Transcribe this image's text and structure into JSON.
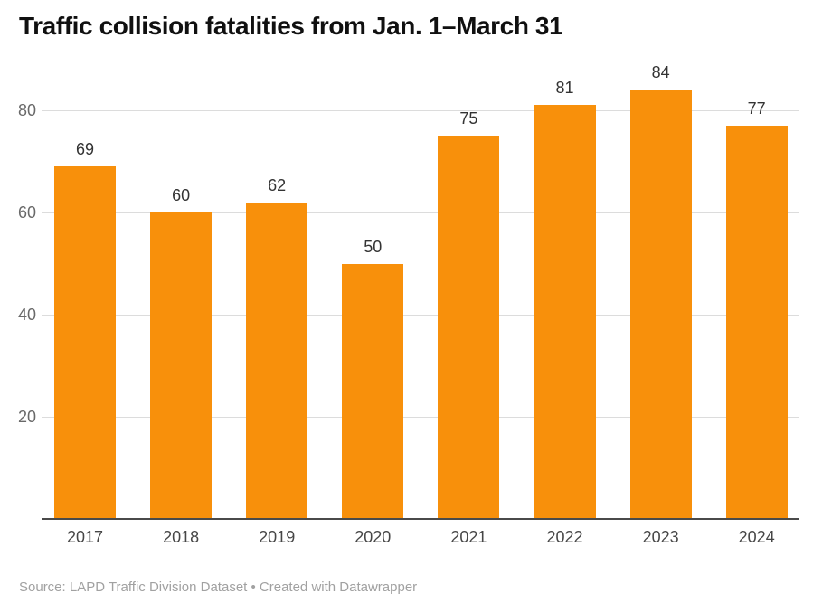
{
  "title": "Traffic collision fatalities from Jan. 1–March 31",
  "footer": {
    "source_text": "Source: LAPD Traffic Division Dataset • Created with Datawrapper"
  },
  "colors": {
    "bar": "#F8900B",
    "grid": "#DCDCDC",
    "axis_line": "#4A4A4A",
    "value_label": "#333333",
    "tick_label": "#696969",
    "x_label": "#464646",
    "title": "#101010",
    "source": "#A1A1A1"
  },
  "chart_data": {
    "type": "bar",
    "categories": [
      "2017",
      "2018",
      "2019",
      "2020",
      "2021",
      "2022",
      "2023",
      "2024"
    ],
    "values": [
      69,
      60,
      62,
      50,
      75,
      81,
      84,
      77
    ],
    "title": "Traffic collision fatalities from Jan. 1–March 31",
    "xlabel": "",
    "ylabel": "",
    "ylim": [
      0,
      87
    ],
    "yticks": [
      20,
      40,
      60,
      80
    ],
    "grid": "horizontal-only",
    "legend": "none",
    "value_labels": true,
    "bar_color": "#F8900B"
  }
}
